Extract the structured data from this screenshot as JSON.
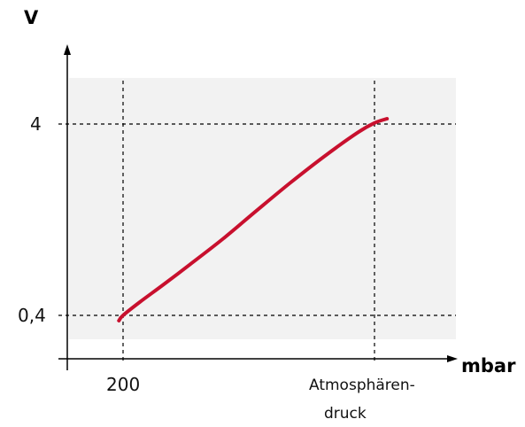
{
  "chart_data": {
    "type": "line",
    "title": "",
    "xlabel": "mbar",
    "ylabel": "V",
    "grid": false,
    "legend": "none",
    "reference_lines": {
      "x": [
        {
          "value": "200"
        },
        {
          "value": "Atmosphärendruck"
        }
      ],
      "y": [
        {
          "value": "4"
        },
        {
          "value": "0,4"
        }
      ]
    },
    "x_ticks": {
      "t200": "200",
      "atm_line1": "Atmosphären-",
      "atm_line2": "druck"
    },
    "y_ticks": {
      "t4": "4",
      "t04": "0,4"
    },
    "series": [
      {
        "x": [
          0.95,
          1.0,
          1.2,
          1.5,
          1.8,
          2.2,
          2.6,
          3.0,
          3.4,
          3.8,
          4.0,
          4.15
        ],
        "y": [
          0.3,
          0.4,
          0.65,
          1.0,
          1.36,
          1.85,
          2.38,
          2.9,
          3.39,
          3.84,
          4.02,
          4.1
        ]
      }
    ],
    "colors": {
      "curve": "#c8102e",
      "plot_background": "#f2f2f2",
      "axis": "#000000",
      "reference_line": "#000000"
    }
  }
}
